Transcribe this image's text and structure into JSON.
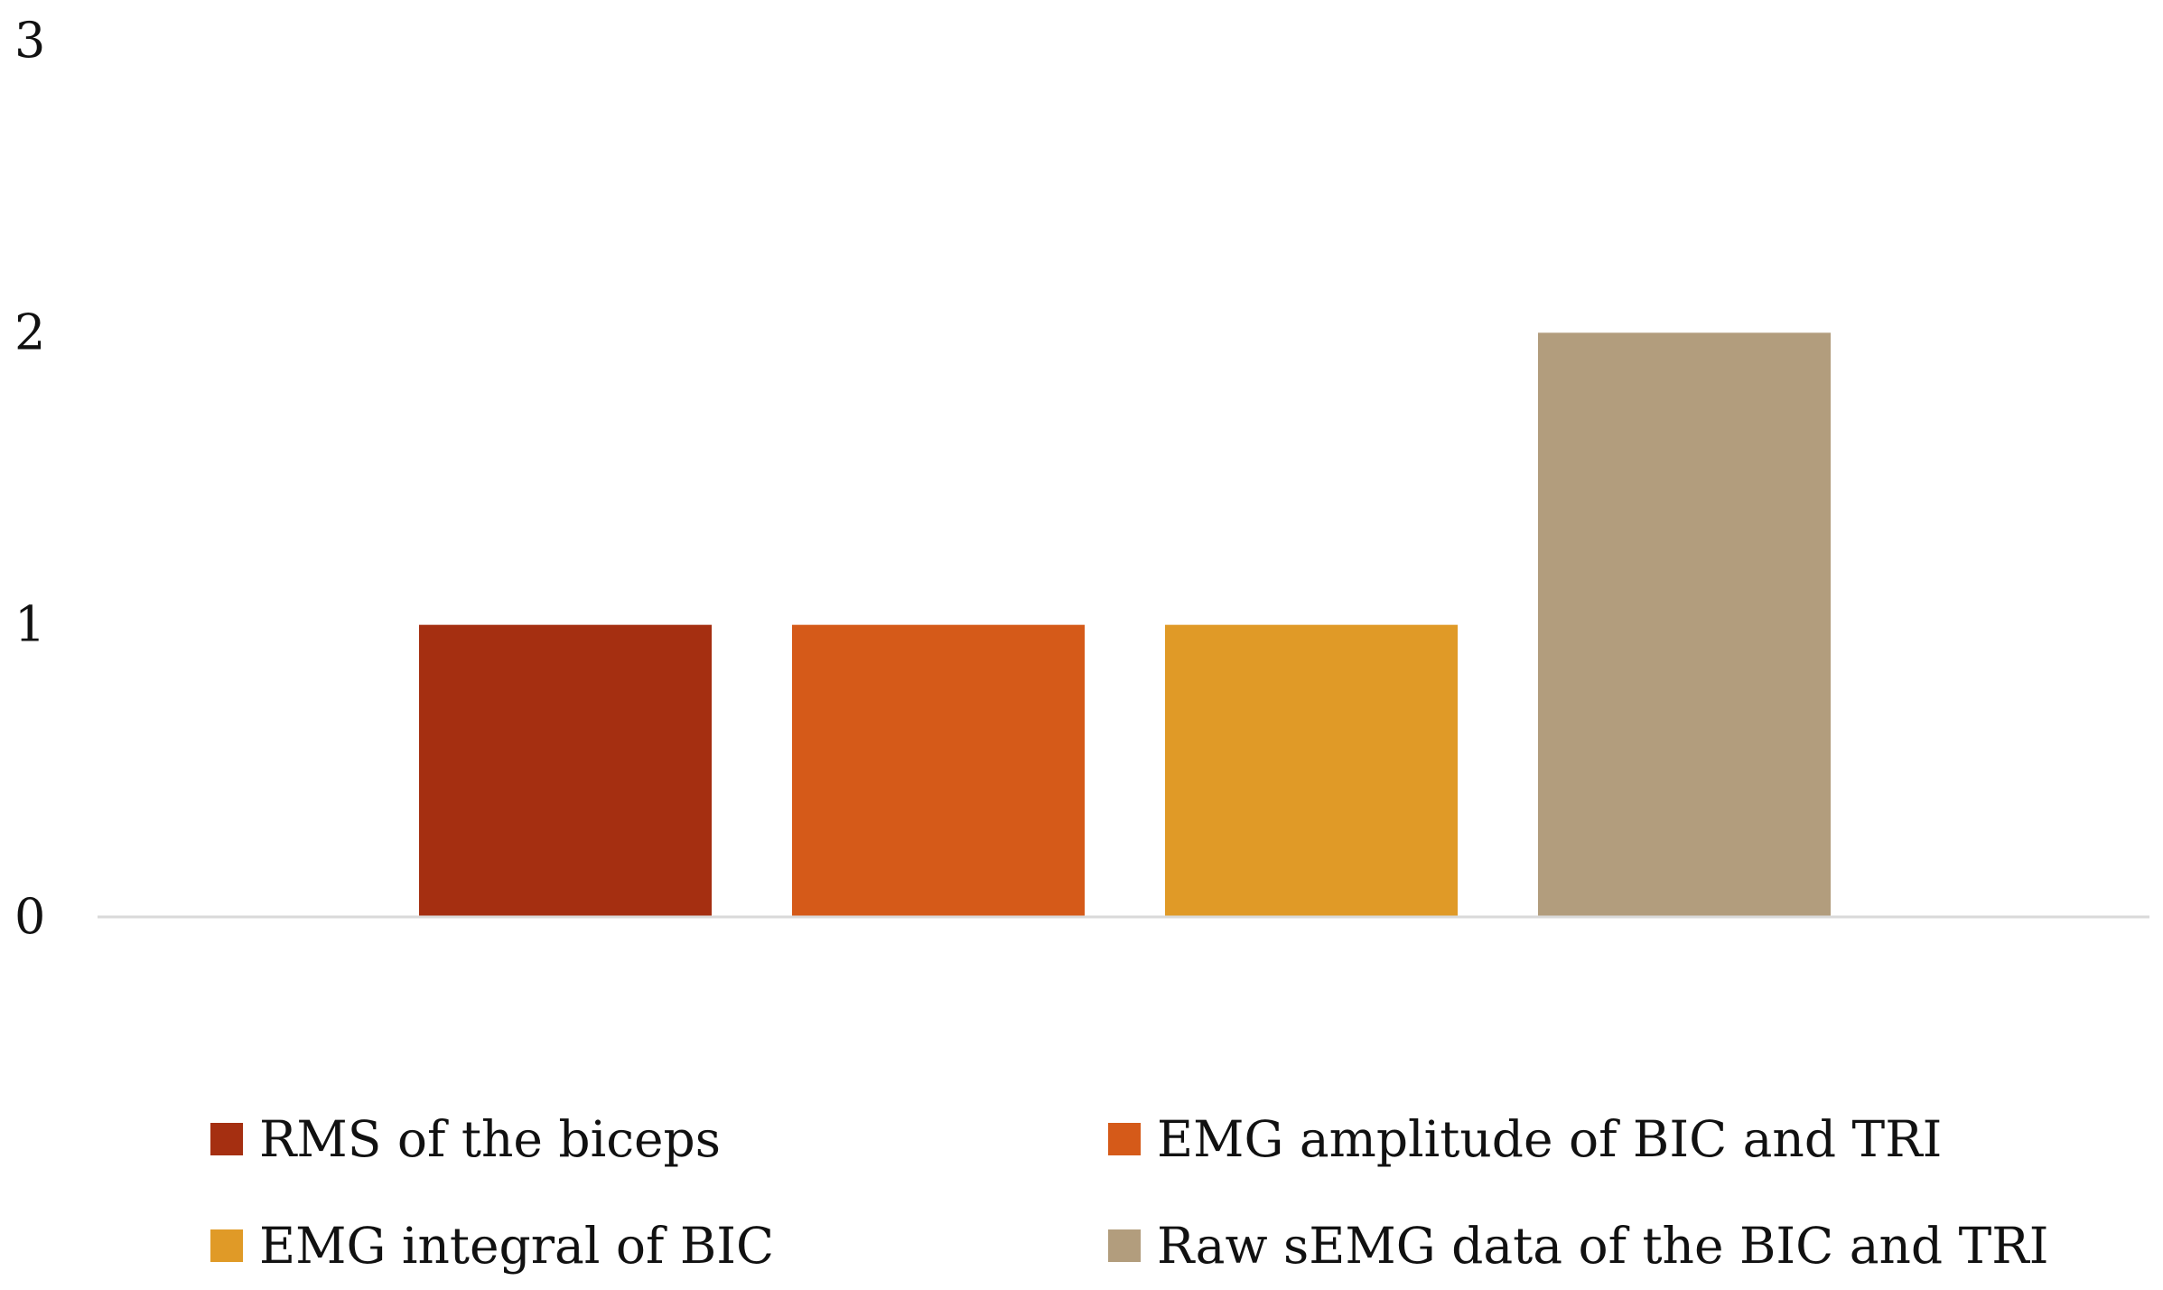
{
  "chart_data": {
    "type": "bar",
    "title": "",
    "xlabel": "",
    "ylabel": "",
    "ylim": [
      0,
      3
    ],
    "yticks": [
      "0",
      "1",
      "2",
      "3"
    ],
    "grid": false,
    "legend_position": "bottom",
    "series": [
      {
        "name": "RMS of the biceps",
        "value": 1,
        "color": "#A52F11"
      },
      {
        "name": "EMG amplitude of BIC and TRI",
        "value": 1,
        "color": "#D55A19"
      },
      {
        "name": "EMG integral of BIC",
        "value": 1,
        "color": "#E09A27"
      },
      {
        "name": "Raw sEMG data of the BIC and TRI",
        "value": 2,
        "color": "#B29D7D"
      }
    ]
  }
}
